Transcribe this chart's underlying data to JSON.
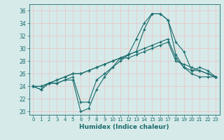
{
  "xlabel": "Humidex (Indice chaleur)",
  "background_color": "#d6eaea",
  "grid_color": "#c8dede",
  "line_color": "#1a6b6b",
  "xlim": [
    -0.5,
    23.5
  ],
  "ylim": [
    19.5,
    37
  ],
  "yticks": [
    20,
    22,
    24,
    26,
    28,
    30,
    32,
    34,
    36
  ],
  "xticks": [
    0,
    1,
    2,
    3,
    4,
    5,
    6,
    7,
    8,
    9,
    10,
    11,
    12,
    13,
    14,
    15,
    16,
    17,
    18,
    19,
    20,
    21,
    22,
    23
  ],
  "series": [
    [
      24.0,
      23.5,
      24.5,
      24.5,
      25.0,
      25.0,
      20.0,
      20.5,
      23.5,
      25.5,
      27.0,
      28.5,
      29.0,
      31.5,
      34.0,
      35.5,
      35.5,
      34.5,
      31.0,
      29.5,
      26.5,
      27.0,
      26.5,
      25.5
    ],
    [
      24.0,
      23.5,
      24.5,
      24.5,
      25.0,
      25.5,
      21.5,
      21.5,
      25.0,
      26.0,
      27.0,
      28.0,
      29.0,
      29.5,
      33.0,
      35.5,
      35.5,
      34.5,
      29.0,
      27.0,
      26.5,
      26.5,
      26.0,
      25.5
    ],
    [
      24.0,
      24.0,
      24.5,
      25.0,
      25.5,
      26.0,
      26.0,
      26.5,
      27.0,
      27.5,
      28.0,
      28.5,
      28.5,
      29.0,
      29.5,
      30.0,
      30.5,
      31.0,
      28.0,
      27.5,
      27.0,
      26.5,
      26.0,
      25.5
    ],
    [
      24.0,
      24.0,
      24.5,
      25.0,
      25.5,
      26.0,
      26.0,
      26.5,
      27.0,
      27.5,
      28.0,
      28.5,
      29.0,
      29.5,
      30.0,
      30.5,
      31.0,
      31.5,
      28.5,
      27.0,
      26.0,
      25.5,
      25.5,
      25.5
    ]
  ]
}
